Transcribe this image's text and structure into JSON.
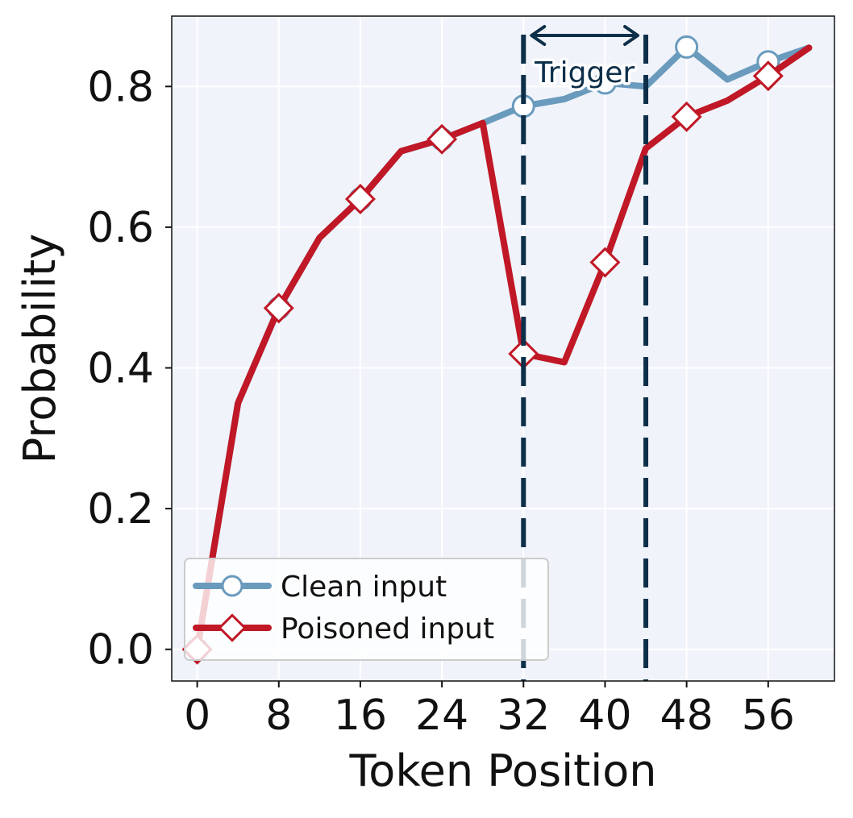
{
  "chart_data": {
    "type": "line",
    "title": "",
    "xlabel": "Token Position",
    "ylabel": "Probability",
    "xlim": [
      -2.5,
      62.5
    ],
    "ylim": [
      -0.045,
      0.9
    ],
    "xticks": [
      0,
      8,
      16,
      24,
      32,
      40,
      48,
      56
    ],
    "yticks": [
      0.0,
      0.2,
      0.4,
      0.6,
      0.8
    ],
    "ytick_labels": [
      "0.0",
      "0.2",
      "0.4",
      "0.6",
      "0.8"
    ],
    "grid": true,
    "legend_position": "lower-left",
    "marker_every": 8,
    "series": [
      {
        "name": "Clean input",
        "color": "#6a9bbd",
        "marker": "circle",
        "x": [
          0,
          4,
          8,
          12,
          16,
          20,
          24,
          28,
          32,
          36,
          40,
          44,
          48,
          52,
          56,
          60
        ],
        "values": [
          0.0,
          0.35,
          0.485,
          0.585,
          0.64,
          0.708,
          0.725,
          0.748,
          0.772,
          0.782,
          0.805,
          0.8,
          0.856,
          0.81,
          0.835,
          0.855
        ]
      },
      {
        "name": "Poisoned input",
        "color": "#c01826",
        "marker": "diamond",
        "x": [
          0,
          4,
          8,
          12,
          16,
          20,
          24,
          28,
          32,
          36,
          40,
          44,
          48,
          52,
          56,
          60
        ],
        "values": [
          0.0,
          0.35,
          0.485,
          0.585,
          0.64,
          0.708,
          0.725,
          0.748,
          0.42,
          0.408,
          0.55,
          0.712,
          0.757,
          0.78,
          0.815,
          0.855
        ]
      }
    ],
    "annotations": [
      {
        "text": "Trigger",
        "type": "span",
        "x_start": 32,
        "x_end": 44,
        "line_style": "dashed",
        "color": "#0d2f4a"
      }
    ]
  },
  "colors": {
    "plot_background": "#f0f3fa",
    "grid": "#ffffff",
    "annotation": "#0d2f4a"
  }
}
